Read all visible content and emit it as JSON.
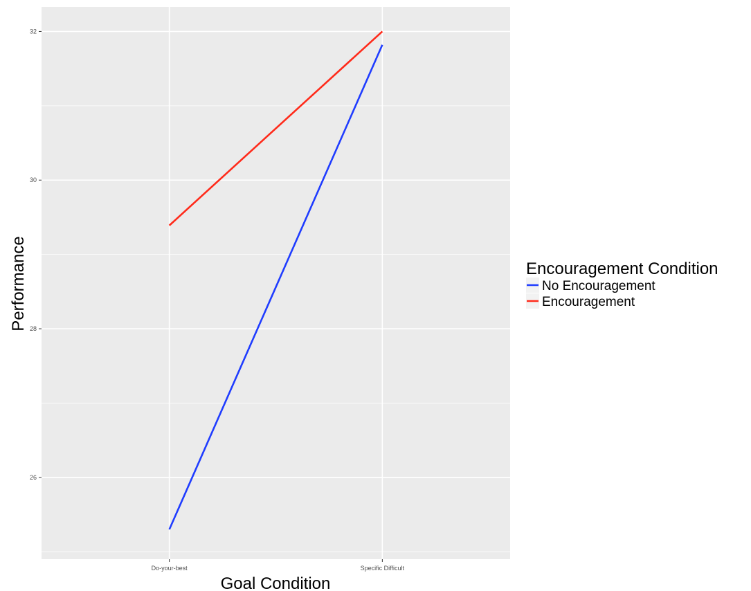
{
  "chart_data": {
    "type": "line",
    "title": "",
    "xlabel": "Goal Condition",
    "ylabel": "Performance",
    "categories": [
      "Do-your-best",
      "Specific Difficult"
    ],
    "y_ticks": [
      26,
      28,
      30,
      32
    ],
    "ylim": [
      24.9,
      32.33
    ],
    "grid": true,
    "legend": {
      "title": "Encouragement Condition",
      "position": "right"
    },
    "series": [
      {
        "name": "No Encouragement",
        "color": "#1f3cff",
        "values": [
          25.3,
          31.82
        ]
      },
      {
        "name": "Encouragement",
        "color": "#ff2a1a",
        "values": [
          29.39,
          32.0
        ]
      }
    ],
    "panel_background": "#ebebeb",
    "grid_color": "#ffffff"
  }
}
